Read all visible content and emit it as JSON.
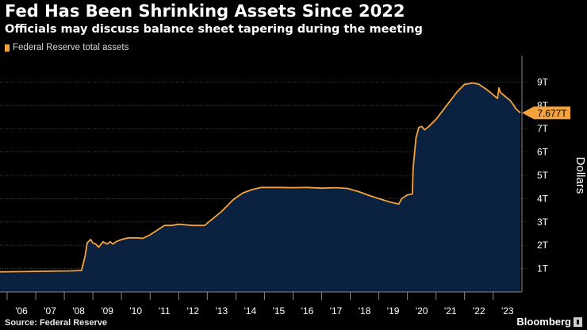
{
  "title": "Fed Has Been Shrinking Assets Since 2022",
  "subtitle": "Officials may discuss balance sheet tapering during the meeting",
  "source": "Source: Federal Reserve",
  "brand": "Bloomberg",
  "colors": {
    "series": "#f5a23c",
    "area": "#0b2140",
    "background": "#000000",
    "grid": "#5a5a5a",
    "tag_text": "#000000"
  },
  "chart_data": {
    "type": "area",
    "title": "Fed Has Been Shrinking Assets Since 2022",
    "subtitle": "Officials may discuss balance sheet tapering during the meeting",
    "ylabel": "Dollars",
    "ylim": [
      0,
      10
    ],
    "xlim": [
      2005.75,
      2023.95
    ],
    "y_ticks": [
      1,
      2,
      3,
      4,
      5,
      6,
      7,
      8,
      9
    ],
    "y_tick_labels": [
      "1T",
      "2T",
      "3T",
      "4T",
      "5T",
      "6T",
      "7T",
      "8T",
      "9T"
    ],
    "x_ticks": [
      2006,
      2007,
      2008,
      2009,
      2010,
      2011,
      2012,
      2013,
      2014,
      2015,
      2016,
      2017,
      2018,
      2019,
      2020,
      2021,
      2022,
      2023
    ],
    "x_tick_labels": [
      "'06",
      "'07",
      "'08",
      "'09",
      "'10",
      "'11",
      "'12",
      "'13",
      "'14",
      "'15",
      "'16",
      "'17",
      "'18",
      "'19",
      "'20",
      "'21",
      "'22",
      "'23"
    ],
    "grid": true,
    "legend_position": "top-left",
    "last_value_label": "7.677T",
    "series": [
      {
        "name": "Federal Reserve total assets",
        "points": [
          [
            2005.75,
            0.86
          ],
          [
            2006.5,
            0.87
          ],
          [
            2007.5,
            0.89
          ],
          [
            2008.2,
            0.9
          ],
          [
            2008.6,
            0.92
          ],
          [
            2008.72,
            1.5
          ],
          [
            2008.8,
            2.1
          ],
          [
            2008.92,
            2.25
          ],
          [
            2009.0,
            2.1
          ],
          [
            2009.1,
            2.05
          ],
          [
            2009.2,
            1.92
          ],
          [
            2009.35,
            2.15
          ],
          [
            2009.5,
            2.05
          ],
          [
            2009.6,
            2.15
          ],
          [
            2009.7,
            2.05
          ],
          [
            2009.8,
            2.15
          ],
          [
            2010.0,
            2.25
          ],
          [
            2010.25,
            2.32
          ],
          [
            2010.5,
            2.32
          ],
          [
            2010.75,
            2.3
          ],
          [
            2011.0,
            2.45
          ],
          [
            2011.25,
            2.65
          ],
          [
            2011.5,
            2.85
          ],
          [
            2011.75,
            2.85
          ],
          [
            2012.0,
            2.9
          ],
          [
            2012.5,
            2.85
          ],
          [
            2012.9,
            2.85
          ],
          [
            2013.0,
            2.95
          ],
          [
            2013.5,
            3.45
          ],
          [
            2013.9,
            3.95
          ],
          [
            2014.25,
            4.25
          ],
          [
            2014.6,
            4.4
          ],
          [
            2014.9,
            4.48
          ],
          [
            2015.5,
            4.48
          ],
          [
            2016.0,
            4.47
          ],
          [
            2016.5,
            4.48
          ],
          [
            2017.0,
            4.45
          ],
          [
            2017.5,
            4.47
          ],
          [
            2017.9,
            4.44
          ],
          [
            2018.3,
            4.3
          ],
          [
            2018.7,
            4.12
          ],
          [
            2019.0,
            4.0
          ],
          [
            2019.4,
            3.85
          ],
          [
            2019.7,
            3.77
          ],
          [
            2019.8,
            4.0
          ],
          [
            2020.0,
            4.16
          ],
          [
            2020.17,
            4.2
          ],
          [
            2020.2,
            5.3
          ],
          [
            2020.3,
            6.6
          ],
          [
            2020.4,
            7.05
          ],
          [
            2020.5,
            7.1
          ],
          [
            2020.6,
            6.95
          ],
          [
            2020.75,
            7.1
          ],
          [
            2021.0,
            7.4
          ],
          [
            2021.25,
            7.8
          ],
          [
            2021.5,
            8.2
          ],
          [
            2021.75,
            8.6
          ],
          [
            2022.0,
            8.9
          ],
          [
            2022.3,
            8.96
          ],
          [
            2022.5,
            8.9
          ],
          [
            2022.75,
            8.7
          ],
          [
            2023.0,
            8.45
          ],
          [
            2023.15,
            8.3
          ],
          [
            2023.2,
            8.75
          ],
          [
            2023.25,
            8.55
          ],
          [
            2023.4,
            8.4
          ],
          [
            2023.6,
            8.2
          ],
          [
            2023.8,
            7.85
          ],
          [
            2023.95,
            7.677
          ]
        ]
      }
    ]
  }
}
